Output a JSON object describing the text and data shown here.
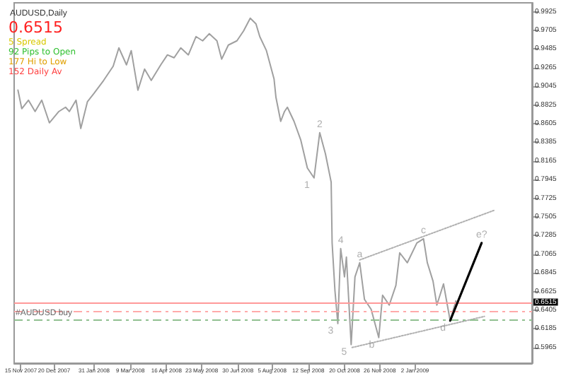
{
  "chart_data": {
    "type": "line",
    "title": "AUDUSD,Daily",
    "xlim": [
      "2007-11-08",
      "2009-05-05"
    ],
    "xticks": [
      {
        "value": "2007-11-15",
        "label": "15 Nov 2007"
      },
      {
        "value": "2007-12-20",
        "label": "20 Dec 2007"
      },
      {
        "value": "2008-01-31",
        "label": "31 Jan 2008"
      },
      {
        "value": "2008-03-09",
        "label": "9 Mar 2008"
      },
      {
        "value": "2008-04-16",
        "label": "16 Apr 2008"
      },
      {
        "value": "2008-05-23",
        "label": "23 May 2008"
      },
      {
        "value": "2008-06-30",
        "label": "30 Jun 2008"
      },
      {
        "value": "2008-08-05",
        "label": "5 Aug 2008"
      },
      {
        "value": "2008-09-12",
        "label": "12 Sep 2008"
      },
      {
        "value": "2008-10-20",
        "label": "20 Oct 2008"
      },
      {
        "value": "2008-11-26",
        "label": "26 Nov 2008"
      },
      {
        "value": "2009-01-02",
        "label": "2 Jan 2009"
      }
    ],
    "ylim": [
      0.578,
      1.003
    ],
    "yticks": [
      {
        "value": 0.5965,
        "label": "0.5965"
      },
      {
        "value": 0.6185,
        "label": "0.6185"
      },
      {
        "value": 0.6405,
        "label": "0.6405"
      },
      {
        "value": 0.6625,
        "label": "0.6625"
      },
      {
        "value": 0.6845,
        "label": "0.6845"
      },
      {
        "value": 0.7065,
        "label": "0.7065"
      },
      {
        "value": 0.7285,
        "label": "0.7285"
      },
      {
        "value": 0.7505,
        "label": "0.7505"
      },
      {
        "value": 0.7725,
        "label": "0.7725"
      },
      {
        "value": 0.7945,
        "label": "0.7945"
      },
      {
        "value": 0.8165,
        "label": "0.8165"
      },
      {
        "value": 0.8385,
        "label": "0.8385"
      },
      {
        "value": 0.8605,
        "label": "0.8605"
      },
      {
        "value": 0.8825,
        "label": "0.8825"
      },
      {
        "value": 0.9045,
        "label": "0.9045"
      },
      {
        "value": 0.9265,
        "label": "0.9265"
      },
      {
        "value": 0.9485,
        "label": "0.9485"
      },
      {
        "value": 0.9705,
        "label": "0.9705"
      },
      {
        "value": 0.9925,
        "label": "0.9925"
      }
    ],
    "grid": false,
    "marker": "none",
    "series": [
      {
        "color": "#a0a0a0",
        "line_style": "solid",
        "x": [
          "2007-11-12",
          "2007-11-16",
          "2007-11-23",
          "2007-11-30",
          "2007-12-07",
          "2007-12-15",
          "2007-12-25",
          "2008-01-01",
          "2008-01-05",
          "2008-01-12",
          "2008-01-17",
          "2008-01-24",
          "2008-01-31",
          "2008-02-10",
          "2008-02-20",
          "2008-02-26",
          "2008-03-05",
          "2008-03-10",
          "2008-03-17",
          "2008-03-24",
          "2008-03-31",
          "2008-04-10",
          "2008-04-17",
          "2008-04-24",
          "2008-05-01",
          "2008-05-09",
          "2008-05-17",
          "2008-05-24",
          "2008-05-31",
          "2008-06-08",
          "2008-06-13",
          "2008-06-20",
          "2008-06-29",
          "2008-07-06",
          "2008-07-13",
          "2008-07-19",
          "2008-07-23",
          "2008-07-30",
          "2008-08-07",
          "2008-08-09",
          "2008-08-14",
          "2008-08-18",
          "2008-08-21",
          "2008-08-28",
          "2008-09-04",
          "2008-09-11",
          "2008-09-18",
          "2008-09-24",
          "2008-09-30",
          "2008-10-06",
          "2008-10-07",
          "2008-10-10",
          "2008-10-13",
          "2008-10-16",
          "2008-10-20",
          "2008-10-22",
          "2008-10-27",
          "2008-10-31",
          "2008-11-05",
          "2008-11-10",
          "2008-11-17",
          "2008-11-25",
          "2008-11-29",
          "2008-12-06",
          "2008-12-13",
          "2008-12-17",
          "2008-12-25",
          "2009-01-04",
          "2009-01-11",
          "2009-01-15",
          "2009-01-21",
          "2009-01-25",
          "2009-02-01",
          "2009-02-08",
          "2009-02-14"
        ],
        "values": [
          0.9,
          0.8782,
          0.8882,
          0.8749,
          0.8882,
          0.8615,
          0.8749,
          0.8799,
          0.8749,
          0.8882,
          0.8549,
          0.8865,
          0.8965,
          0.9115,
          0.9282,
          0.9499,
          0.9299,
          0.9466,
          0.9,
          0.9249,
          0.9115,
          0.9299,
          0.9416,
          0.9382,
          0.9499,
          0.9416,
          0.9632,
          0.9582,
          0.9666,
          0.9582,
          0.9366,
          0.9532,
          0.9582,
          0.9699,
          0.9849,
          0.9782,
          0.9632,
          0.9466,
          0.9132,
          0.8915,
          0.8632,
          0.8749,
          0.8799,
          0.8632,
          0.8415,
          0.8082,
          0.7965,
          0.8499,
          0.8249,
          0.7915,
          0.7198,
          0.6632,
          0.6248,
          0.7132,
          0.6798,
          0.7032,
          0.6,
          0.6798,
          0.6965,
          0.6532,
          0.6415,
          0.6082,
          0.6582,
          0.6465,
          0.6698,
          0.7082,
          0.6965,
          0.7198,
          0.7248,
          0.6965,
          0.6748,
          0.6465,
          0.6715,
          0.6282,
          0.6515
        ]
      },
      {
        "color": "#000000",
        "line_style": "solid",
        "x": [
          "2009-02-08",
          "2009-03-13"
        ],
        "values": [
          0.6282,
          0.7198
        ]
      },
      {
        "color": "#b0b0b0",
        "line_style": "dotted",
        "x": [
          "2008-11-05",
          "2009-03-26"
        ],
        "values": [
          0.6998,
          0.7582
        ]
      },
      {
        "color": "#b0b0b0",
        "line_style": "dotted",
        "x": [
          "2008-10-28",
          "2009-03-16"
        ],
        "values": [
          0.5965,
          0.6332
        ]
      }
    ],
    "ref_lines": [
      {
        "axis": "y",
        "value": 0.6515,
        "label": "0.6515",
        "color": "#ff9999",
        "line_style": "solid"
      },
      {
        "axis": "y",
        "value": 0.6415,
        "label": null,
        "color": "#ffaaaa",
        "line_style": "dashed"
      },
      {
        "axis": "y",
        "value": 0.6315,
        "label": "#AUDUSD buy",
        "color": "#90c090",
        "line_style": "dashed"
      }
    ],
    "annotations": [
      "0.6515",
      "5 Spread",
      "92 Pips to Open",
      "177 Hi to Low",
      "152 Daily Av",
      {
        "text": "1",
        "x": "2008-09-18",
        "y": 0.7965
      },
      {
        "text": "2",
        "x": "2008-09-24",
        "y": 0.8499
      },
      {
        "text": "3",
        "x": "2008-10-13",
        "y": 0.6248
      },
      {
        "text": "4",
        "x": "2008-10-16",
        "y": 0.7132
      },
      {
        "text": "5",
        "x": "2008-10-27",
        "y": 0.6
      },
      {
        "text": "a",
        "x": "2008-11-05",
        "y": 0.6965
      },
      {
        "text": "b",
        "x": "2008-11-25",
        "y": 0.6082
      },
      {
        "text": "c",
        "x": "2009-01-11",
        "y": 0.7248
      },
      {
        "text": "d",
        "x": "2009-02-08",
        "y": 0.6282
      },
      {
        "text": "e?",
        "x": "2009-03-13",
        "y": 0.7198
      }
    ]
  }
}
